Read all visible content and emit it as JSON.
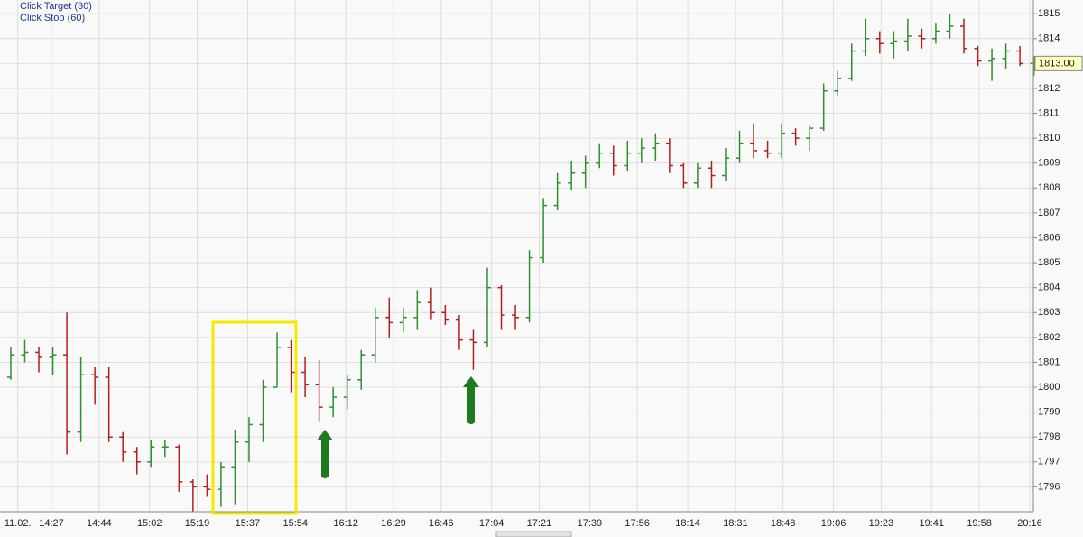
{
  "chart_data": {
    "type": "ohlc",
    "legend": [
      "Click Target  (30)",
      "Click Stop  (60)"
    ],
    "x": [
      "14:10",
      "14:15",
      "14:20",
      "14:25",
      "14:30",
      "14:35",
      "14:40",
      "14:45",
      "14:50",
      "14:55",
      "15:00",
      "15:05",
      "15:10",
      "15:15",
      "15:20",
      "15:25",
      "15:30",
      "15:35",
      "15:40",
      "15:45",
      "15:50",
      "15:55",
      "16:00",
      "16:05",
      "16:10",
      "16:15",
      "16:20",
      "16:25",
      "16:30",
      "16:35",
      "16:40",
      "16:45",
      "16:50",
      "16:55",
      "17:00",
      "17:05",
      "17:10",
      "17:15",
      "17:20",
      "17:25",
      "17:30",
      "17:35",
      "17:40",
      "17:45",
      "17:50",
      "17:55",
      "18:00",
      "18:05",
      "18:10",
      "18:15",
      "18:20",
      "18:25",
      "18:30",
      "18:35",
      "18:40",
      "18:45",
      "18:50",
      "18:55",
      "19:00",
      "19:05",
      "19:10",
      "19:15",
      "19:20",
      "19:25",
      "19:30",
      "19:35",
      "19:40",
      "19:45",
      "19:50",
      "19:55",
      "20:00",
      "20:05",
      "20:10",
      "20:15"
    ],
    "open": [
      1800.4,
      1801.3,
      1801.4,
      1801.2,
      1801.3,
      1798.2,
      1800.5,
      1800.4,
      1798.0,
      1797.4,
      1797.0,
      1797.6,
      1797.6,
      1796.2,
      1796.0,
      1795.9,
      1796.8,
      1797.8,
      1798.5,
      1800.0,
      1801.6,
      1800.6,
      1800.1,
      1799.2,
      1799.6,
      1800.3,
      1801.3,
      1802.8,
      1802.6,
      1802.8,
      1803.4,
      1803.0,
      1802.7,
      1801.9,
      1801.8,
      1804.0,
      1802.9,
      1802.8,
      1805.2,
      1807.3,
      1808.2,
      1808.6,
      1809.0,
      1809.4,
      1808.9,
      1809.4,
      1809.6,
      1809.8,
      1808.9,
      1808.2,
      1808.8,
      1808.5,
      1809.2,
      1809.8,
      1809.5,
      1809.4,
      1810.2,
      1810.0,
      1810.4,
      1811.9,
      1812.4,
      1813.5,
      1814.0,
      1813.8,
      1813.9,
      1814.1,
      1814.0,
      1814.3,
      1814.5,
      1813.6,
      1813.1,
      1813.2,
      1813.5,
      1813.0
    ],
    "high": [
      1801.6,
      1801.9,
      1801.6,
      1801.6,
      1803.0,
      1801.2,
      1800.8,
      1800.8,
      1798.2,
      1797.6,
      1797.9,
      1797.9,
      1797.7,
      1796.3,
      1796.5,
      1797.0,
      1798.3,
      1798.8,
      1800.3,
      1802.2,
      1801.9,
      1801.2,
      1801.1,
      1800.0,
      1800.5,
      1801.5,
      1803.2,
      1803.6,
      1803.2,
      1803.9,
      1804.0,
      1803.3,
      1802.9,
      1802.3,
      1804.8,
      1804.1,
      1803.3,
      1805.5,
      1807.6,
      1808.6,
      1809.1,
      1809.3,
      1809.8,
      1809.7,
      1809.9,
      1810.0,
      1810.2,
      1810.0,
      1809.0,
      1809.0,
      1809.1,
      1809.6,
      1810.3,
      1810.6,
      1809.9,
      1810.6,
      1810.4,
      1810.5,
      1812.2,
      1812.7,
      1813.8,
      1814.8,
      1814.3,
      1814.3,
      1814.8,
      1814.4,
      1814.6,
      1815.0,
      1814.8,
      1813.7,
      1813.6,
      1813.8,
      1813.7,
      1813.3
    ],
    "low": [
      1800.3,
      1801.0,
      1800.6,
      1800.5,
      1797.3,
      1797.8,
      1799.3,
      1797.8,
      1797.0,
      1796.5,
      1796.8,
      1797.2,
      1795.8,
      1795.0,
      1795.6,
      1795.2,
      1795.3,
      1797.0,
      1797.8,
      1800.0,
      1799.8,
      1799.6,
      1798.6,
      1798.8,
      1799.1,
      1799.9,
      1801.0,
      1802.0,
      1802.2,
      1802.3,
      1802.7,
      1802.5,
      1801.5,
      1800.7,
      1801.6,
      1802.3,
      1802.3,
      1802.6,
      1805.0,
      1807.1,
      1807.9,
      1808.0,
      1808.8,
      1808.5,
      1808.7,
      1809.0,
      1809.1,
      1808.6,
      1808.0,
      1808.0,
      1808.0,
      1808.3,
      1809.0,
      1809.2,
      1809.2,
      1809.2,
      1809.7,
      1809.5,
      1810.3,
      1811.7,
      1812.3,
      1813.3,
      1813.4,
      1813.2,
      1813.5,
      1813.6,
      1813.8,
      1814.0,
      1813.4,
      1812.9,
      1812.3,
      1812.8,
      1812.9,
      1812.5
    ],
    "close": [
      1801.3,
      1801.4,
      1801.2,
      1801.3,
      1798.2,
      1800.5,
      1800.4,
      1798.0,
      1797.4,
      1797.0,
      1797.6,
      1797.6,
      1796.2,
      1796.0,
      1795.9,
      1796.8,
      1797.8,
      1798.5,
      1800.0,
      1801.6,
      1800.6,
      1800.1,
      1799.2,
      1799.6,
      1800.3,
      1801.3,
      1802.8,
      1802.6,
      1802.8,
      1803.4,
      1803.0,
      1802.7,
      1801.9,
      1801.8,
      1804.0,
      1802.9,
      1802.8,
      1805.2,
      1807.3,
      1808.2,
      1808.6,
      1809.0,
      1809.4,
      1808.9,
      1809.4,
      1809.6,
      1809.8,
      1808.9,
      1808.2,
      1808.8,
      1808.5,
      1809.2,
      1809.8,
      1809.5,
      1809.4,
      1810.2,
      1810.0,
      1810.4,
      1811.9,
      1812.4,
      1813.5,
      1814.0,
      1813.8,
      1813.9,
      1814.1,
      1814.0,
      1814.3,
      1814.5,
      1813.6,
      1813.1,
      1813.2,
      1813.5,
      1813.0,
      1813.0
    ],
    "up_color": "#2f8f2f",
    "down_color": "#b02020",
    "ylim": [
      1795,
      1815.55
    ],
    "yticks": [
      1796,
      1797,
      1798,
      1799,
      1800,
      1801,
      1802,
      1803,
      1804,
      1805,
      1806,
      1807,
      1808,
      1809,
      1810,
      1811,
      1812,
      1813,
      1814,
      1815
    ],
    "xticks": [
      {
        "value": "14:15",
        "label": "11.02."
      },
      "14:27",
      "14:44",
      "15:02",
      "15:19",
      "15:37",
      "15:54",
      "16:12",
      "16:29",
      "16:46",
      "17:04",
      "17:21",
      "17:39",
      "17:56",
      "18:14",
      "18:31",
      "18:48",
      "19:06",
      "19:23",
      "19:41",
      "19:58",
      "20:16"
    ],
    "last_price": {
      "value": 1813,
      "label": "1813.00"
    },
    "grid": true
  }
}
